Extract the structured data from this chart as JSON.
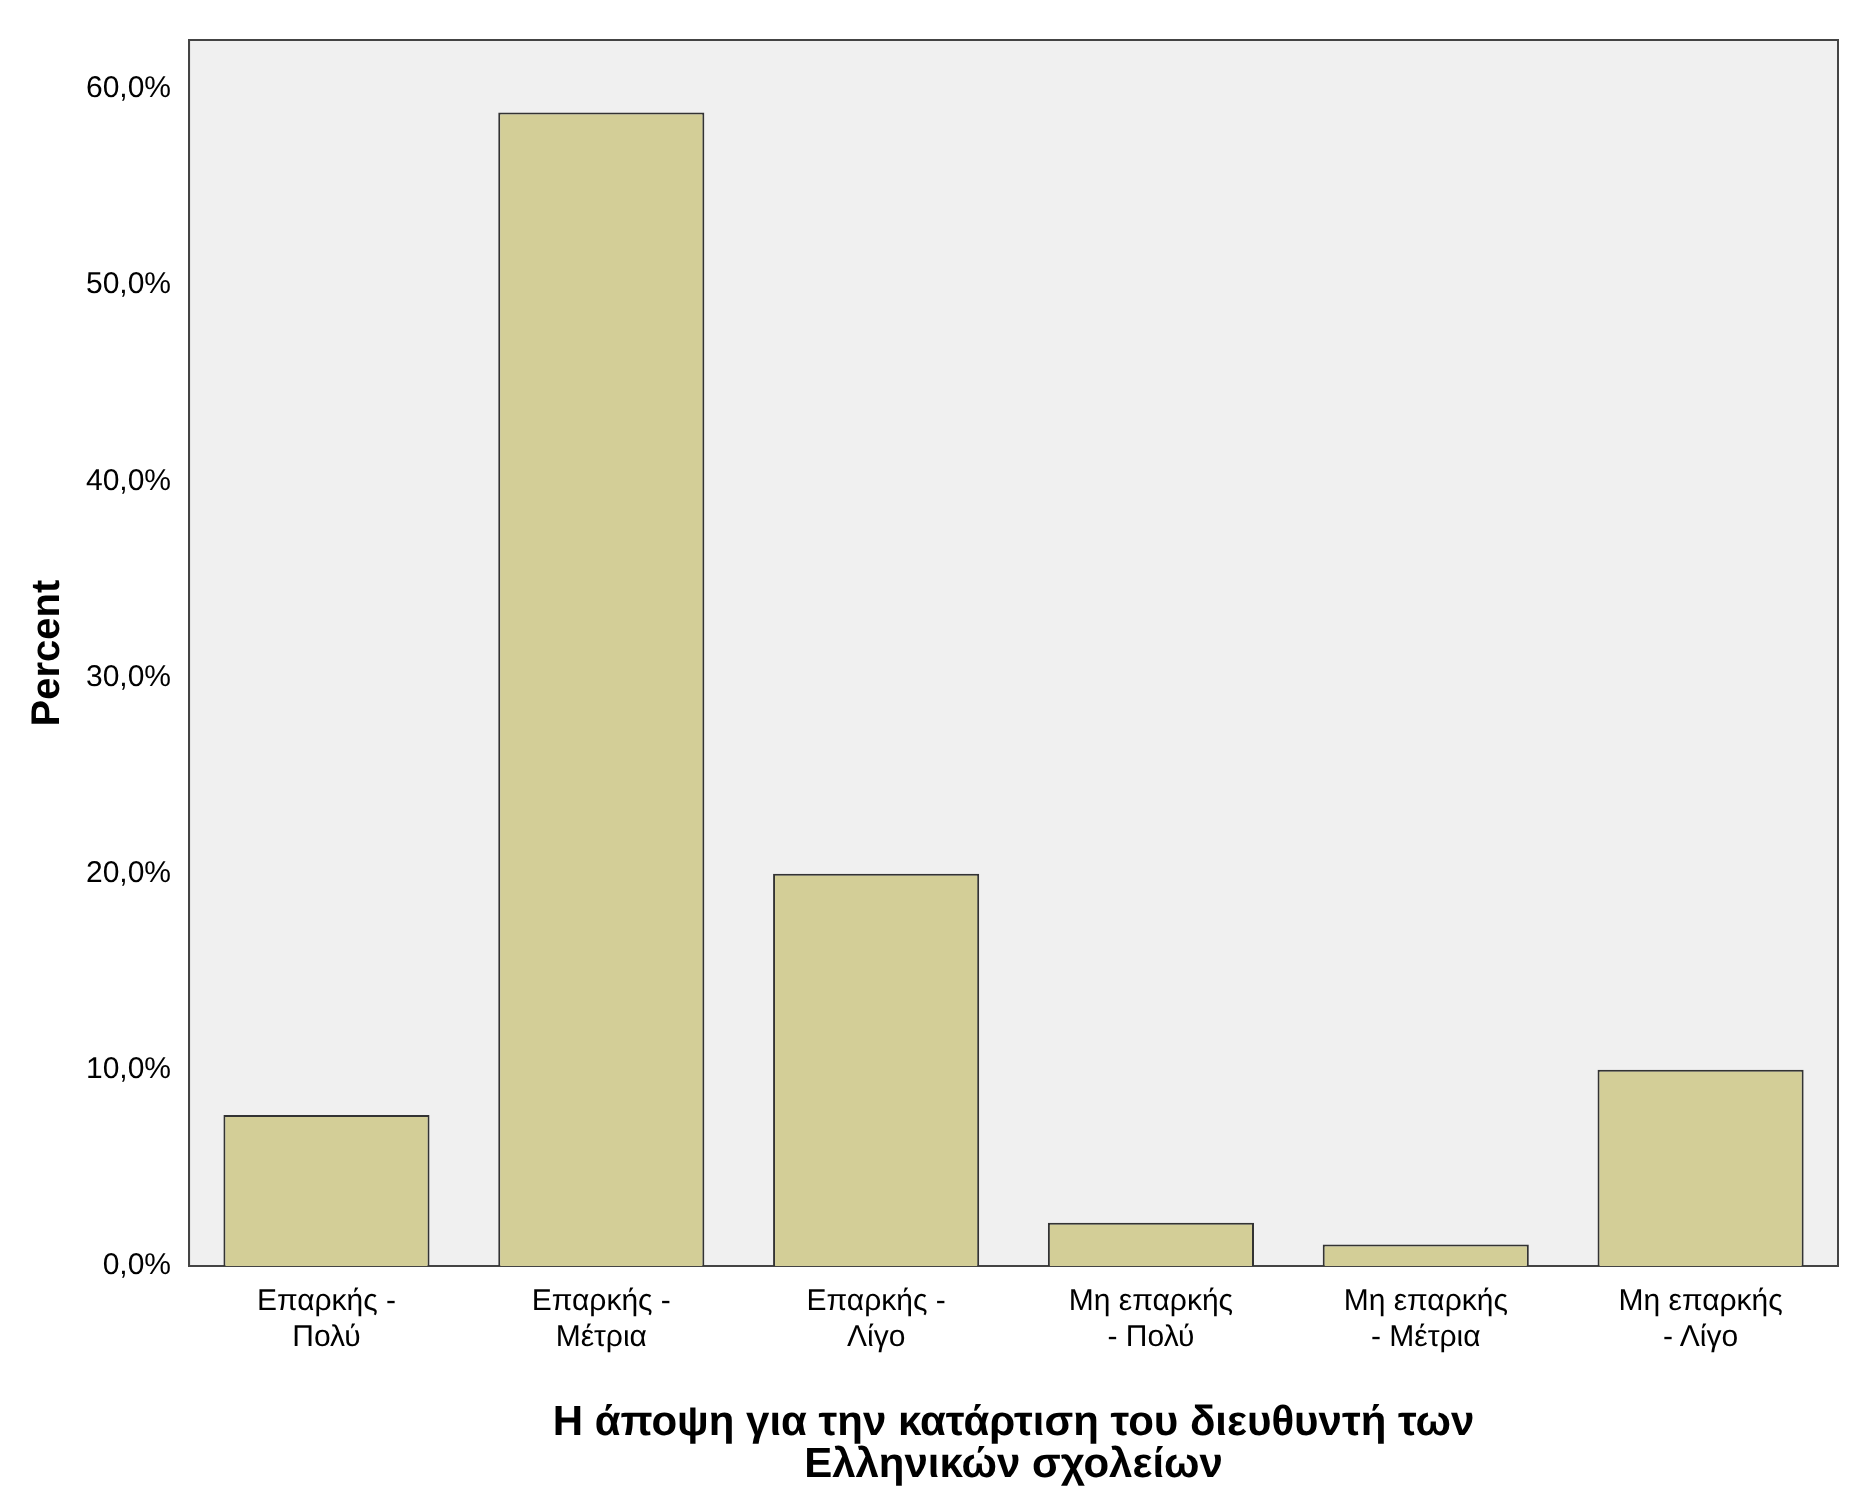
{
  "chart_data": {
    "type": "bar",
    "xlabel": "Η άποψη για την κατάρτιση του διευθυντή των Ελληνικών σχολείων",
    "ylabel": "Percent",
    "categories": [
      "Επαρκής - Πολύ",
      "Επαρκής - Μέτρια",
      "Επαρκής - Λίγο",
      "Μη επαρκής - Πολύ",
      "Μη επαρκής - Μέτρια",
      "Μη επαρκής - Λίγο"
    ],
    "values": [
      7.7,
      58.8,
      20.0,
      2.2,
      1.1,
      10.0
    ],
    "color": "#d3ce97",
    "ylim": [
      0,
      62.5
    ],
    "yticks": [
      {
        "value": 0,
        "label": "0,0%"
      },
      {
        "value": 10,
        "label": "10,0%"
      },
      {
        "value": 20,
        "label": "20,0%"
      },
      {
        "value": 30,
        "label": "30,0%"
      },
      {
        "value": 40,
        "label": "40,0%"
      },
      {
        "value": 50,
        "label": "50,0%"
      },
      {
        "value": 60,
        "label": "60,0%"
      }
    ],
    "grid": false,
    "legend": false
  }
}
